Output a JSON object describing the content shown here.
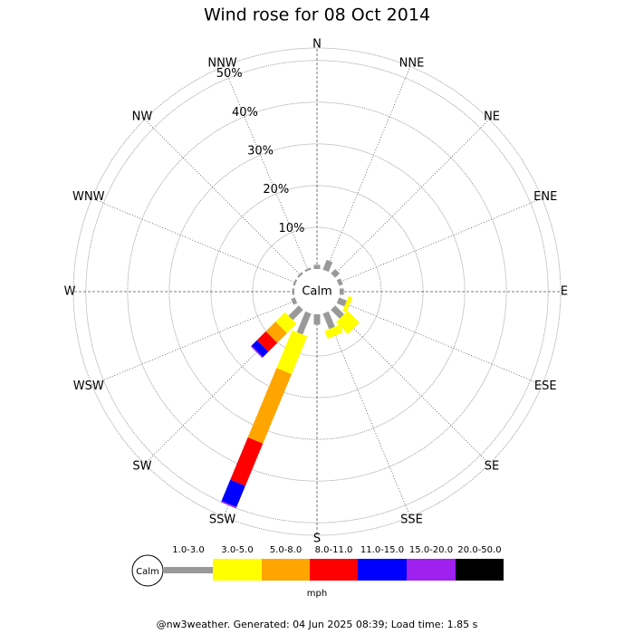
{
  "chart_data": {
    "type": "windrose",
    "title": "Wind rose for 08 Oct 2014",
    "calm_label": "Calm",
    "categories": [
      "N",
      "NNE",
      "NE",
      "ENE",
      "E",
      "ESE",
      "SE",
      "SSE",
      "S",
      "SSW",
      "SW",
      "WSW",
      "W",
      "WNW",
      "NW",
      "NNW"
    ],
    "series": [
      {
        "name": "1.0-3.0",
        "color": "#999999",
        "values": [
          1,
          2.5,
          1.5,
          1,
          1,
          2,
          3,
          4,
          2.5,
          5.4,
          3.5,
          1,
          0.5,
          0.5,
          0.5,
          0.5
        ]
      },
      {
        "name": "3.0-5.0",
        "color": "#ffff00",
        "values": [
          0,
          0,
          0,
          0,
          0,
          1,
          4,
          2,
          0,
          9.8,
          3.2,
          0,
          0,
          0,
          0,
          0
        ]
      },
      {
        "name": "5.0-8.0",
        "color": "#ffa500",
        "values": [
          0,
          0,
          0,
          0,
          0,
          0,
          0,
          0,
          0,
          18,
          3.3,
          0,
          0,
          0,
          0,
          0
        ]
      },
      {
        "name": "8.0-11.0",
        "color": "#ff0000",
        "values": [
          0,
          0,
          0,
          0,
          0,
          0,
          0,
          0,
          0,
          11,
          3,
          0,
          0,
          0,
          0,
          0
        ]
      },
      {
        "name": "11.0-15.0",
        "color": "#0000ff",
        "values": [
          0,
          0,
          0,
          0,
          0,
          0,
          0,
          0,
          0,
          5.5,
          1.8,
          0,
          0,
          0,
          0,
          0
        ]
      },
      {
        "name": "15.0-20.0",
        "color": "#a020f0",
        "values": [
          0,
          0,
          0,
          0,
          0,
          0,
          0,
          0,
          0,
          0.3,
          0.3,
          0,
          0,
          0,
          0,
          0
        ]
      },
      {
        "name": "20.0-50.0",
        "color": "#000000",
        "values": [
          0,
          0,
          0,
          0,
          0,
          0,
          0,
          0,
          0,
          0,
          0,
          0,
          0,
          0,
          0,
          0
        ]
      }
    ],
    "rlim": [
      0,
      53
    ],
    "rticks": [
      {
        "value": 10,
        "label": "10%"
      },
      {
        "value": 20,
        "label": "20%"
      },
      {
        "value": 30,
        "label": "30%"
      },
      {
        "value": 40,
        "label": "40%"
      },
      {
        "value": 50,
        "label": "50%"
      }
    ],
    "legend_unit": "mph",
    "footer": "@nw3weather. Generated: 04 Jun 2025 08:39; Load time: 1.85 s"
  }
}
